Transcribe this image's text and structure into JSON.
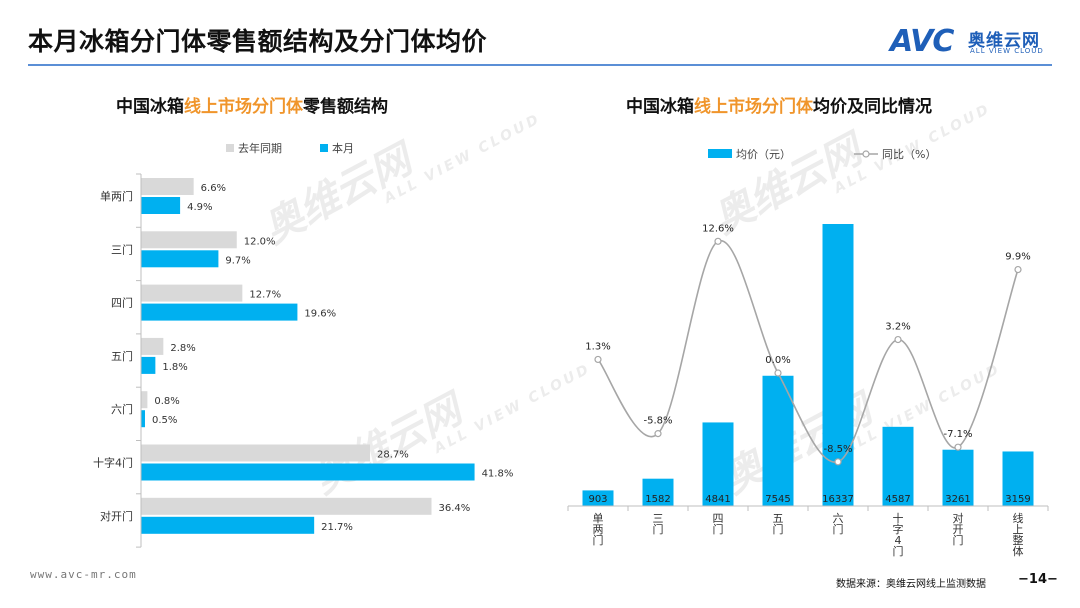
{
  "header": {
    "title": "本月冰箱分门体零售额结构及分门体均价",
    "logo_cn": "奥维云网",
    "logo_en": "ALL VIEW CLOUD",
    "logo_mark": "AVC"
  },
  "footer": {
    "website": "www.avc-mr.com",
    "source": "数据来源：奥维云网线上监测数据",
    "page": "−14−"
  },
  "colors": {
    "accent": "#00b0f0",
    "gray_bar": "#d9d9d9",
    "line": "#a6a6a6",
    "highlight": "#f0952b",
    "rule": "#5b8fd6"
  },
  "left_chart": {
    "title_pre": "中国冰箱",
    "title_hl": "线上市场分门体",
    "title_post": "零售额结构"
  },
  "right_chart": {
    "title_pre": "中国冰箱",
    "title_hl": "线上市场分门体",
    "title_post": "均价及同比情况"
  },
  "chart_data": [
    {
      "type": "bar",
      "orientation": "horizontal",
      "categories": [
        "单两门",
        "三门",
        "四门",
        "五门",
        "六门",
        "十字4门",
        "对开门"
      ],
      "series": [
        {
          "name": "去年同期",
          "values": [
            6.6,
            12.0,
            12.7,
            2.8,
            0.8,
            28.7,
            36.4
          ],
          "labels": [
            "6.6%",
            "12.0%",
            "12.7%",
            "2.8%",
            "0.8%",
            "28.7%",
            "36.4%"
          ],
          "color": "#d9d9d9"
        },
        {
          "name": "本月",
          "values": [
            4.9,
            9.7,
            19.6,
            1.8,
            0.5,
            41.8,
            21.7
          ],
          "labels": [
            "4.9%",
            "9.7%",
            "19.6%",
            "1.8%",
            "0.5%",
            "41.8%",
            "21.7%"
          ],
          "color": "#00b0f0"
        }
      ],
      "xlim": [
        0,
        45
      ],
      "legend": "top",
      "grid": false
    },
    {
      "type": "bar+line",
      "categories": [
        "单两门",
        "三门",
        "四门",
        "五门",
        "六门",
        "十字4门",
        "对开门",
        "线上整体"
      ],
      "series": [
        {
          "name": "均价（元）",
          "type": "bar",
          "values": [
            903,
            1582,
            4841,
            7545,
            16337,
            4587,
            3261,
            3159
          ],
          "color": "#00b0f0"
        },
        {
          "name": "同比（%）",
          "type": "line",
          "values": [
            1.3,
            -5.8,
            12.6,
            0.0,
            -8.5,
            3.2,
            -7.1,
            9.9
          ],
          "labels": [
            "1.3%",
            "-5.8%",
            "12.6%",
            "0.0%",
            "-8.5%",
            "3.2%",
            "-7.1%",
            "9.9%"
          ],
          "color": "#a6a6a6"
        }
      ],
      "legend": "top",
      "grid": false
    }
  ]
}
